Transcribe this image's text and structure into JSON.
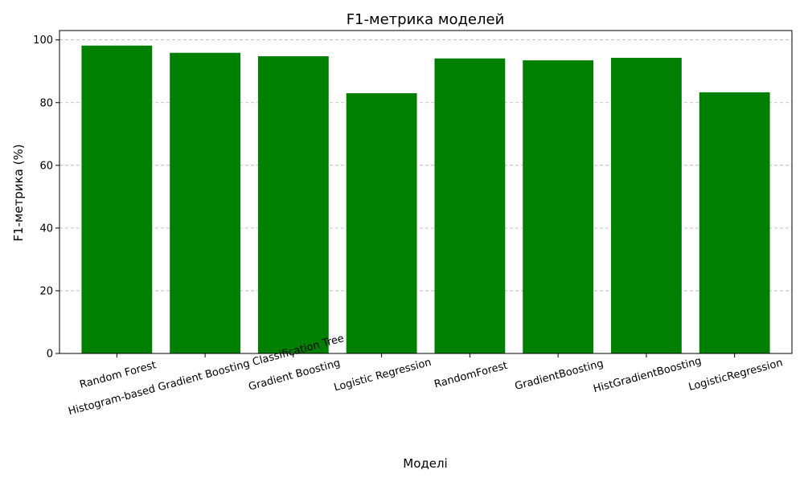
{
  "chart_data": {
    "type": "bar",
    "title": "F1-метрика моделей",
    "xlabel": "Моделі",
    "ylabel": "F1-метрика (%)",
    "categories": [
      "Random Forest",
      "Histogram-based Gradient Boosting Classification Tree",
      "Gradient Boosting",
      "Logistic Regression",
      "RandomForest",
      "GradientBoosting",
      "HistGradientBoosting",
      "LogisticRegression"
    ],
    "values": [
      98.2,
      95.9,
      94.8,
      83.0,
      94.1,
      93.5,
      94.3,
      83.3
    ],
    "ylim": [
      0,
      103
    ],
    "yticks": [
      0,
      20,
      40,
      60,
      80,
      100
    ],
    "grid": "y",
    "bar_color": "#008000"
  }
}
